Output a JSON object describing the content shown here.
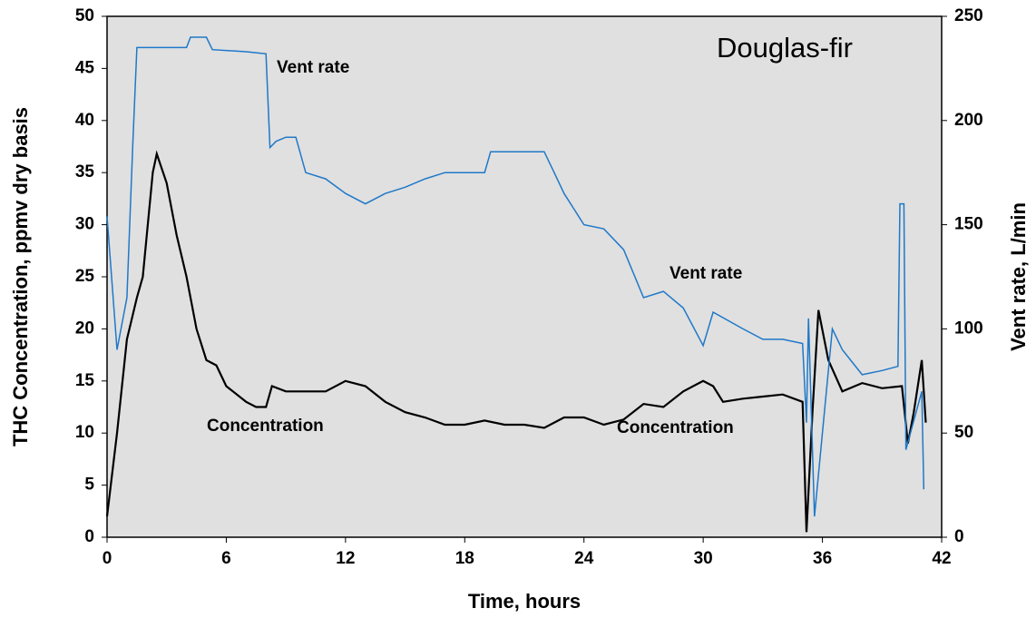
{
  "chart_data": {
    "type": "line",
    "title": "Douglas-fir",
    "xlabel": "Time, hours",
    "ylabel": "THC Concentration, ppmv dry basis",
    "y2label": "Vent rate, L/min",
    "annotations": [
      "Vent rate",
      "Vent rate",
      "Concentration",
      "Concentration"
    ],
    "xlim": [
      0,
      42
    ],
    "xticks": [
      0,
      6,
      12,
      18,
      24,
      30,
      36,
      42
    ],
    "ylim": [
      0,
      50
    ],
    "yticks": [
      0,
      5,
      10,
      15,
      20,
      25,
      30,
      35,
      40,
      45,
      50
    ],
    "y2lim": [
      0,
      250
    ],
    "y2ticks": [
      0,
      50,
      100,
      150,
      200,
      250
    ],
    "series": [
      {
        "name": "Concentration",
        "color": "#000000",
        "x": [
          0,
          0.5,
          1,
          1.5,
          1.8,
          2.3,
          2.5,
          3,
          3.5,
          4,
          4.5,
          5,
          5.5,
          6,
          7,
          7.5,
          8,
          8.3,
          9,
          10,
          11,
          12,
          13,
          14,
          15,
          16,
          17,
          18,
          19,
          20,
          21,
          22,
          23,
          24,
          25,
          26,
          27,
          28,
          29,
          30,
          30.5,
          31,
          32,
          33,
          34,
          35,
          35.2,
          35.5,
          35.8,
          36.3,
          37,
          38,
          39,
          40,
          40.3,
          40.6,
          41,
          41.2
        ],
        "values": [
          2,
          10,
          19,
          23,
          25,
          35,
          36.8,
          34,
          29,
          25,
          20,
          17,
          16.5,
          14.5,
          13,
          12.5,
          12.5,
          14.5,
          14,
          14,
          14,
          15,
          14.5,
          13,
          12,
          11.5,
          10.8,
          10.8,
          11.2,
          10.8,
          10.8,
          10.5,
          11.5,
          11.5,
          10.8,
          11.3,
          12.8,
          12.5,
          14,
          15,
          14.5,
          13,
          13.3,
          13.5,
          13.7,
          13,
          0.5,
          12,
          21.8,
          17,
          14,
          14.8,
          14.3,
          14.5,
          9,
          12,
          17,
          11
        ]
      },
      {
        "name": "Vent rate",
        "color": "#1f78c8",
        "axis": "y2",
        "x": [
          0,
          0.5,
          1,
          1.3,
          1.5,
          2,
          4,
          4.2,
          5,
          5.3,
          7,
          8,
          8.2,
          8.5,
          9,
          9.5,
          10,
          11,
          12,
          13,
          14,
          15,
          16,
          17,
          18,
          19,
          19.3,
          22,
          22.5,
          23,
          24,
          25,
          26,
          27,
          28,
          29,
          30,
          30.5,
          32,
          33,
          34,
          35,
          35.2,
          35.3,
          35.6,
          36.5,
          37,
          38,
          39,
          39.8,
          39.9,
          40.1,
          40.2,
          41,
          41.1
        ],
        "values": [
          154,
          90,
          115,
          190,
          235,
          235,
          235,
          240,
          240,
          234,
          233,
          232,
          187,
          190,
          192,
          192,
          175,
          172,
          165,
          160,
          165,
          168,
          172,
          175,
          175,
          175,
          185,
          185,
          175,
          165,
          150,
          148,
          138,
          115,
          118,
          110,
          92,
          108,
          100,
          95,
          95,
          93,
          55,
          105,
          10,
          100,
          90,
          78,
          80,
          82,
          160,
          160,
          42,
          70,
          23
        ]
      }
    ]
  }
}
